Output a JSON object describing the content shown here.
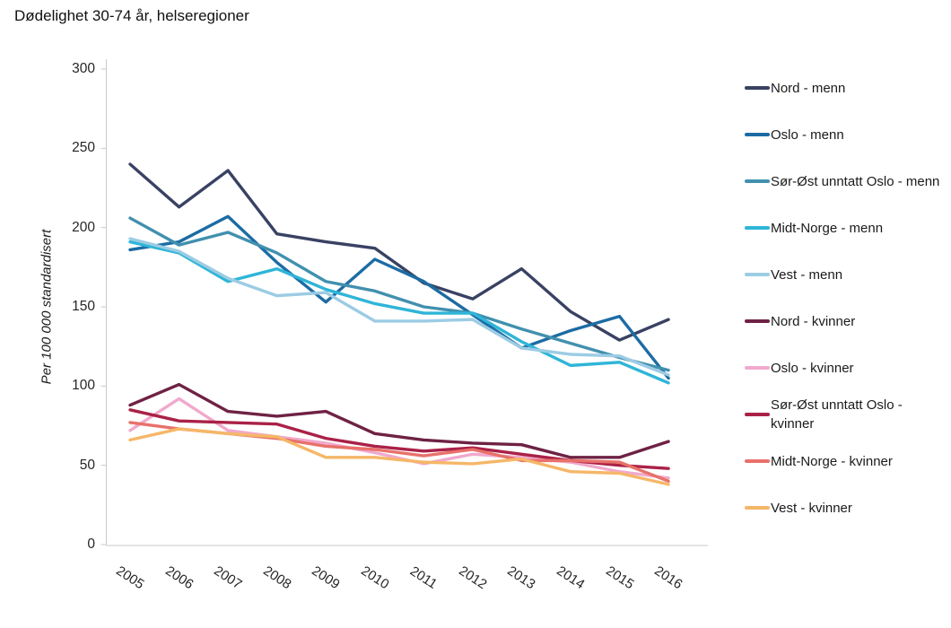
{
  "chart_data": {
    "type": "line",
    "title": "Dødelighet 30-74 år, helseregioner",
    "xlabel": "",
    "ylabel": "Per 100 000 standardisert",
    "ylim": [
      0,
      300
    ],
    "yticks": [
      0,
      50,
      100,
      150,
      200,
      250,
      300
    ],
    "grid": false,
    "legend_position": "right",
    "categories": [
      "2005",
      "2006",
      "2007",
      "2008",
      "2009",
      "2010",
      "2011",
      "2012",
      "2013",
      "2014",
      "2015",
      "2016"
    ],
    "series": [
      {
        "name": "Nord - menn",
        "color": "#394263",
        "values": [
          240,
          213,
          236,
          196,
          191,
          187,
          165,
          155,
          174,
          147,
          129,
          142
        ]
      },
      {
        "name": "Oslo - menn",
        "color": "#1C6CA4",
        "values": [
          186,
          191,
          207,
          178,
          153,
          180,
          166,
          145,
          124,
          135,
          144,
          105
        ]
      },
      {
        "name": "Sør-Øst unntatt Oslo - menn",
        "color": "#4190AE",
        "values": [
          206,
          189,
          197,
          184,
          166,
          160,
          150,
          146,
          136,
          127,
          118,
          110
        ]
      },
      {
        "name": "Midt-Norge - menn",
        "color": "#2FB5D8",
        "values": [
          191,
          184,
          166,
          174,
          161,
          152,
          146,
          146,
          128,
          113,
          115,
          102
        ]
      },
      {
        "name": "Vest - menn",
        "color": "#9CCCE4",
        "values": [
          193,
          185,
          168,
          157,
          159,
          141,
          141,
          142,
          124,
          120,
          119,
          107
        ]
      },
      {
        "name": "Nord - kvinner",
        "color": "#6E2244",
        "values": [
          88,
          101,
          84,
          81,
          84,
          70,
          66,
          64,
          63,
          55,
          55,
          65
        ]
      },
      {
        "name": "Oslo - kvinner",
        "color": "#F1A9CD",
        "values": [
          72,
          92,
          72,
          68,
          64,
          58,
          51,
          57,
          55,
          52,
          46,
          42
        ]
      },
      {
        "name": "Sør-Øst unntatt Oslo - kvinner",
        "color": "#AA2147",
        "values": [
          85,
          78,
          77,
          76,
          67,
          62,
          59,
          61,
          57,
          53,
          50,
          48
        ]
      },
      {
        "name": "Midt-Norge - kvinner",
        "color": "#E8716A",
        "values": [
          77,
          73,
          70,
          67,
          62,
          60,
          56,
          60,
          53,
          53,
          52,
          40
        ]
      },
      {
        "name": "Vest - kvinner",
        "color": "#F5B768",
        "values": [
          66,
          73,
          70,
          68,
          55,
          55,
          52,
          51,
          54,
          46,
          45,
          38
        ]
      }
    ]
  },
  "colors": {
    "axis": "#C9C9C9",
    "tick_text": "#262626",
    "title_text": "#111111"
  }
}
